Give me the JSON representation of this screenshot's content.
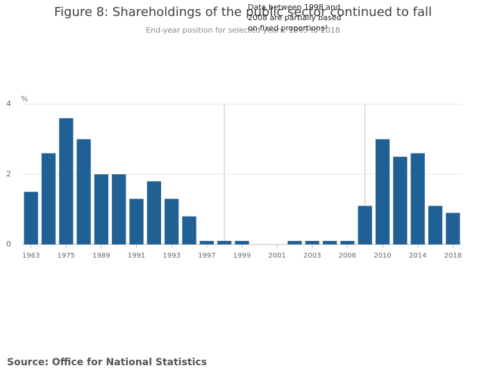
{
  "chart_data": {
    "type": "bar",
    "title": "Figure 8: Shareholdings of the public sector continued to fall",
    "subtitle": "End-year position for selected years, 1963 to 2018",
    "y_label": "%",
    "annotation": [
      "Data between 1998 and",
      "2008 are partially based",
      "on fixed proportions²"
    ],
    "source": "Source: Office for National Statistics",
    "categories": [
      "1963",
      null,
      "1975",
      null,
      "1989",
      null,
      "1991",
      null,
      "1993",
      null,
      "1997",
      null,
      "1999",
      null,
      "2001",
      null,
      "2003",
      null,
      "2006",
      null,
      "2010",
      null,
      "2014",
      null,
      "2018"
    ],
    "values": [
      1.5,
      2.6,
      3.6,
      3.0,
      2.0,
      2.0,
      1.3,
      1.8,
      1.3,
      0.8,
      0.1,
      0.1,
      0.1,
      0,
      0,
      0.1,
      0.1,
      0.1,
      0.1,
      1.1,
      3.0,
      2.5,
      2.6,
      1.1,
      0.9
    ],
    "color": "#206095",
    "ylim": [
      0,
      4
    ],
    "yticks": [
      0,
      2,
      4
    ],
    "grid": true
  }
}
